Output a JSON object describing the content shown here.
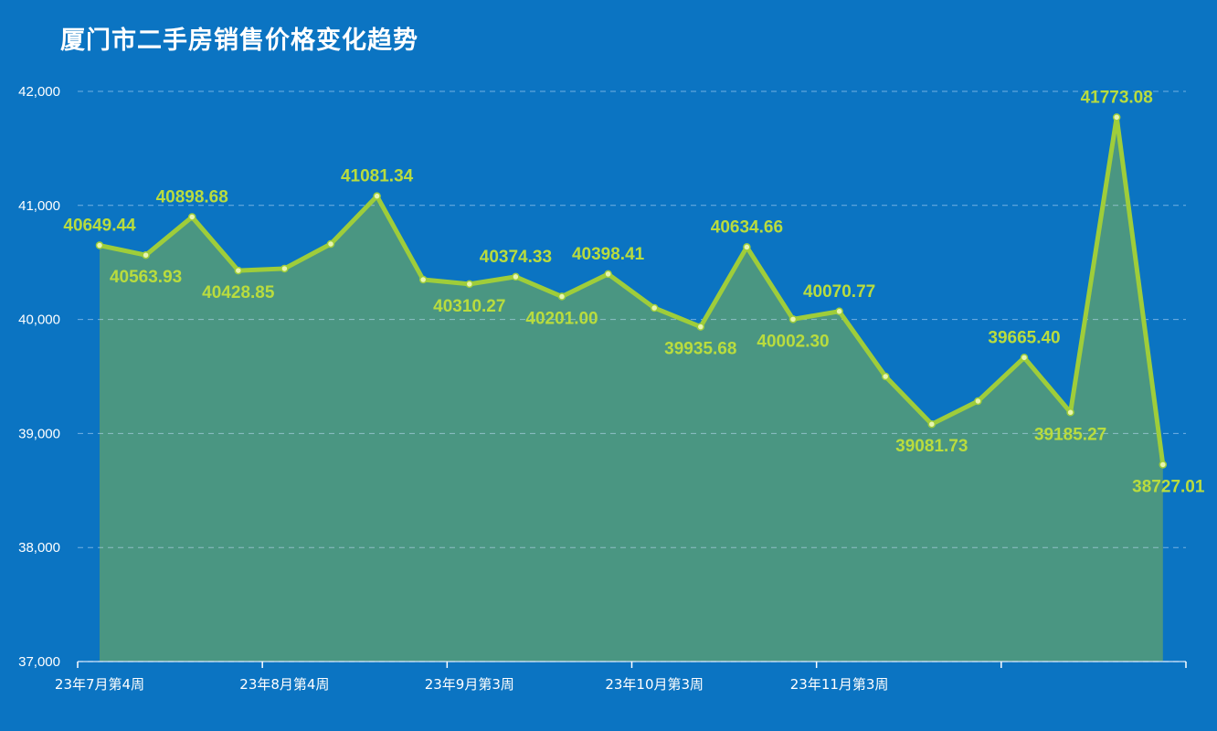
{
  "chart_data": {
    "type": "area",
    "title": "厦门市二手房销售价格变化趋势",
    "xlabel": "",
    "ylabel": "",
    "ylim": [
      37000,
      42000
    ],
    "yticks": [
      "37,000",
      "38,000",
      "39,000",
      "40,000",
      "41,000",
      "42,000"
    ],
    "ytick_values": [
      37000,
      38000,
      39000,
      40000,
      41000,
      42000
    ],
    "xtick_labels": [
      "23年7月第4周",
      "23年8月第4周",
      "23年9月第3周",
      "23年10月第3周",
      "23年11月第3周"
    ],
    "xtick_indices": [
      0,
      4,
      8,
      12,
      16
    ],
    "grid": true,
    "colors": {
      "background": "#0b74c2",
      "line": "#9fcd3a",
      "fill": "#4a9682",
      "label": "#b9dc3e"
    },
    "values": [
      40649.44,
      40563.93,
      40898.68,
      40428.85,
      40446,
      40662,
      41081.34,
      40349,
      40310.27,
      40374.33,
      40201.0,
      40398.41,
      40101,
      39935.68,
      40634.66,
      40002.3,
      40070.77,
      39500,
      39081.73,
      39284,
      39665.4,
      39185.27,
      41773.08,
      38727.01
    ],
    "data_labels": [
      "40649.44",
      "40563.93",
      "40898.68",
      "40428.85",
      null,
      null,
      "41081.34",
      null,
      "40310.27",
      "40374.33",
      "40201.00",
      "40398.41",
      null,
      "39935.68",
      "40634.66",
      "40002.30",
      "40070.77",
      null,
      "39081.73",
      null,
      "39665.40",
      "39185.27",
      "41773.08",
      "38727.01"
    ]
  }
}
